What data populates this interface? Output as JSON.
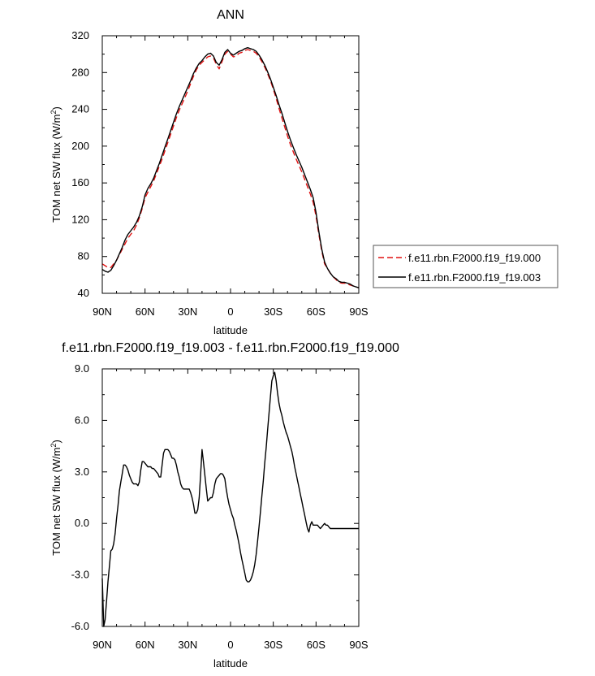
{
  "chart_data": [
    {
      "type": "line",
      "title": "ANN",
      "xlabel": "latitude",
      "ylabel": "TOM net SW flux (W/m",
      "ylabel_sup": "2",
      "ylabel_end": ")",
      "xlim": [
        90,
        -90
      ],
      "ylim": [
        40,
        320
      ],
      "x_ticks": [
        90,
        60,
        30,
        0,
        -30,
        -60,
        -90
      ],
      "x_tick_labels": [
        "90N",
        "60N",
        "30N",
        "0",
        "30S",
        "60S",
        "90S"
      ],
      "y_ticks": [
        40,
        80,
        120,
        160,
        200,
        240,
        280,
        320
      ],
      "y_tick_labels": [
        "40",
        "80",
        "120",
        "160",
        "200",
        "240",
        "280",
        "320"
      ],
      "grid": false,
      "legend_position": "right",
      "x": [
        90,
        88,
        86,
        84,
        82,
        80,
        78,
        76,
        74,
        72,
        70,
        68,
        66,
        64,
        62,
        60,
        58,
        56,
        54,
        52,
        50,
        48,
        46,
        44,
        42,
        40,
        38,
        36,
        34,
        32,
        30,
        28,
        26,
        24,
        22,
        20,
        18,
        16,
        14,
        12,
        10,
        8,
        6,
        4,
        2,
        0,
        -2,
        -4,
        -6,
        -8,
        -10,
        -12,
        -14,
        -16,
        -18,
        -20,
        -22,
        -24,
        -26,
        -28,
        -30,
        -32,
        -34,
        -36,
        -38,
        -40,
        -42,
        -44,
        -46,
        -48,
        -50,
        -52,
        -54,
        -56,
        -58,
        -60,
        -62,
        -64,
        -66,
        -68,
        -70,
        -72,
        -74,
        -76,
        -78,
        -80,
        -82,
        -84,
        -86,
        -88,
        -90
      ],
      "series": [
        {
          "name": "f.e11.rbn.F2000.f19_f19.000",
          "color": "#e01010",
          "dash": "dashed",
          "values": [
            72,
            70,
            68,
            68,
            72,
            76,
            82,
            88,
            94,
            100,
            104,
            108,
            114,
            122,
            132,
            144,
            150,
            156,
            162,
            170,
            178,
            186,
            195,
            204,
            213,
            222,
            231,
            239,
            246,
            253,
            260,
            268,
            276,
            283,
            288,
            291,
            294,
            297,
            298,
            296,
            289,
            284,
            292,
            300,
            303,
            300,
            297,
            298,
            301,
            302,
            304,
            305,
            304,
            303,
            301,
            297,
            292,
            286,
            279,
            271,
            262,
            252,
            241,
            231,
            221,
            211,
            202,
            194,
            186,
            179,
            172,
            164,
            156,
            148,
            139,
            124,
            104,
            86,
            72,
            67,
            62,
            58,
            55,
            52,
            51,
            51,
            50,
            49,
            48,
            47,
            46
          ]
        },
        {
          "name": "f.e11.rbn.F2000.f19_f19.003",
          "color": "#000000",
          "dash": "solid",
          "values": [
            66,
            64,
            63,
            65,
            70,
            76,
            83,
            90,
            98,
            104,
            108,
            112,
            117,
            124,
            134,
            147,
            154,
            159,
            165,
            173,
            181,
            190,
            199,
            208,
            217,
            226,
            235,
            243,
            250,
            257,
            264,
            271,
            279,
            285,
            290,
            293,
            297,
            300,
            301,
            298,
            291,
            288,
            294,
            302,
            305,
            301,
            299,
            301,
            303,
            304,
            306,
            307,
            306,
            305,
            303,
            299,
            294,
            288,
            281,
            273,
            264,
            255,
            245,
            236,
            226,
            216,
            207,
            199,
            191,
            184,
            177,
            169,
            161,
            153,
            144,
            128,
            107,
            88,
            74,
            67,
            62,
            58,
            56,
            53,
            52,
            52,
            51,
            50,
            48,
            47,
            46
          ]
        }
      ]
    },
    {
      "type": "line",
      "title": "f.e11.rbn.F2000.f19_f19.003 - f.e11.rbn.F2000.f19_f19.000",
      "xlabel": "latitude",
      "ylabel": "TOM net SW flux (W/m",
      "ylabel_sup": "2",
      "ylabel_end": ")",
      "xlim": [
        90,
        -90
      ],
      "ylim": [
        -6.0,
        9.0
      ],
      "x_ticks": [
        90,
        60,
        30,
        0,
        -30,
        -60,
        -90
      ],
      "x_tick_labels": [
        "90N",
        "60N",
        "30N",
        "0",
        "30S",
        "60S",
        "90S"
      ],
      "y_ticks": [
        -6.0,
        -3.0,
        0.0,
        3.0,
        6.0,
        9.0
      ],
      "y_tick_labels": [
        "-6.0",
        "-3.0",
        "0.0",
        "3.0",
        "6.0",
        "9.0"
      ],
      "grid": false,
      "x": [
        90,
        89,
        88,
        87,
        86,
        85,
        84,
        83,
        82,
        81,
        80,
        79,
        78,
        77,
        76,
        75,
        74,
        73,
        72,
        71,
        70,
        69,
        68,
        67,
        66,
        65,
        64,
        63,
        62,
        61,
        60,
        59,
        58,
        57,
        56,
        55,
        54,
        53,
        52,
        51,
        50,
        49,
        48,
        47,
        46,
        45,
        44,
        43,
        42,
        41,
        40,
        39,
        38,
        37,
        36,
        35,
        34,
        33,
        32,
        31,
        30,
        29,
        28,
        27,
        26,
        25,
        24,
        23,
        22,
        21,
        20,
        19,
        18,
        17,
        16,
        15,
        14,
        13,
        12,
        11,
        10,
        9,
        8,
        7,
        6,
        5,
        4,
        3,
        2,
        1,
        0,
        -1,
        -2,
        -3,
        -4,
        -5,
        -6,
        -7,
        -8,
        -9,
        -10,
        -11,
        -12,
        -13,
        -14,
        -15,
        -16,
        -17,
        -18,
        -19,
        -20,
        -21,
        -22,
        -23,
        -24,
        -25,
        -26,
        -27,
        -28,
        -29,
        -30,
        -31,
        -32,
        -33,
        -34,
        -35,
        -36,
        -37,
        -38,
        -39,
        -40,
        -41,
        -42,
        -43,
        -44,
        -45,
        -46,
        -47,
        -48,
        -49,
        -50,
        -51,
        -52,
        -53,
        -54,
        -55,
        -56,
        -57,
        -58,
        -59,
        -60,
        -61,
        -62,
        -63,
        -64,
        -65,
        -66,
        -67,
        -68,
        -69,
        -70,
        -71,
        -72,
        -73,
        -74,
        -75,
        -76,
        -77,
        -78,
        -79,
        -80,
        -81,
        -82,
        -83,
        -84,
        -85,
        -86,
        -87,
        -88,
        -89,
        -90
      ],
      "series": [
        {
          "name": "",
          "color": "#000000",
          "dash": "solid",
          "values": [
            -3.2,
            -6.0,
            -5.6,
            -4.5,
            -3.4,
            -2.5,
            -1.6,
            -1.5,
            -1.2,
            -0.6,
            0.3,
            1.0,
            1.9,
            2.4,
            2.9,
            3.4,
            3.4,
            3.3,
            3.1,
            2.8,
            2.6,
            2.4,
            2.3,
            2.3,
            2.3,
            2.2,
            2.4,
            3.1,
            3.6,
            3.6,
            3.5,
            3.4,
            3.3,
            3.3,
            3.3,
            3.2,
            3.2,
            3.1,
            3.0,
            2.9,
            2.7,
            2.7,
            3.4,
            4.1,
            4.3,
            4.3,
            4.3,
            4.2,
            4.0,
            3.8,
            3.8,
            3.7,
            3.4,
            3.0,
            2.7,
            2.3,
            2.1,
            2.0,
            2.0,
            2.0,
            2.0,
            2.0,
            1.8,
            1.5,
            1.1,
            0.6,
            0.6,
            0.8,
            1.5,
            2.8,
            4.3,
            3.6,
            2.8,
            2.0,
            1.3,
            1.4,
            1.5,
            1.5,
            1.8,
            2.3,
            2.6,
            2.7,
            2.8,
            2.9,
            2.9,
            2.8,
            2.6,
            2.0,
            1.5,
            1.1,
            0.8,
            0.5,
            0.3,
            -0.1,
            -0.4,
            -0.8,
            -1.2,
            -1.7,
            -2.1,
            -2.5,
            -2.9,
            -3.3,
            -3.4,
            -3.4,
            -3.3,
            -3.1,
            -2.8,
            -2.4,
            -1.8,
            -1.0,
            -0.2,
            0.7,
            1.6,
            2.5,
            3.5,
            4.4,
            5.4,
            6.4,
            7.4,
            8.3,
            8.6,
            8.8,
            8.3,
            7.6,
            7.0,
            6.6,
            6.3,
            5.9,
            5.6,
            5.3,
            5.1,
            4.8,
            4.5,
            4.2,
            3.8,
            3.3,
            2.9,
            2.5,
            2.1,
            1.7,
            1.3,
            0.9,
            0.5,
            0.1,
            -0.3,
            -0.5,
            -0.1,
            0.1,
            -0.1,
            -0.1,
            -0.1,
            -0.1,
            -0.2,
            -0.3,
            -0.2,
            -0.1,
            0.0,
            -0.1,
            -0.1,
            -0.2,
            -0.3,
            -0.3,
            -0.3,
            -0.3,
            -0.3,
            -0.3,
            -0.3,
            -0.3,
            -0.3,
            -0.3,
            -0.3,
            -0.3,
            -0.3,
            -0.3,
            -0.3,
            -0.3,
            -0.3,
            -0.3,
            -0.3,
            -0.3,
            -0.3
          ]
        }
      ]
    }
  ]
}
